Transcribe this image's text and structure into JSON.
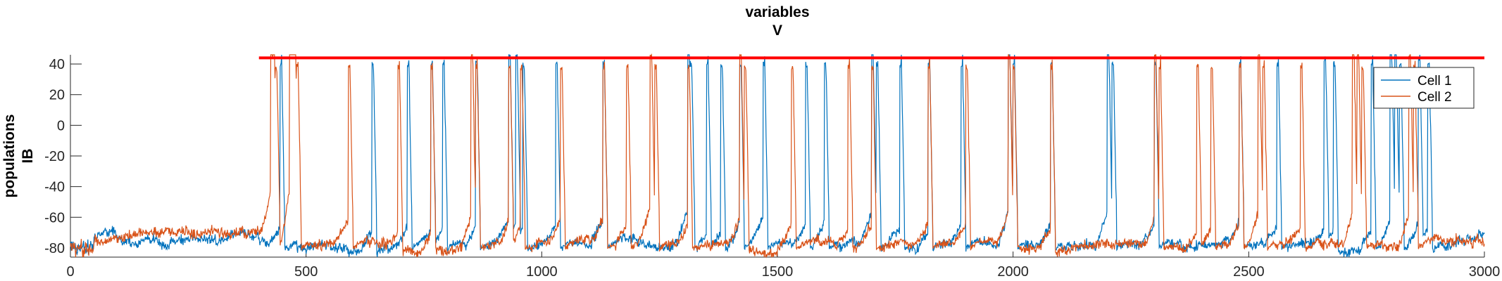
{
  "chart_data": {
    "type": "line",
    "title_lines": [
      "variables",
      "V"
    ],
    "ylabel_lines": [
      "populations",
      "IB"
    ],
    "xlabel": "",
    "xlim": [
      0,
      3000
    ],
    "ylim": [
      -86,
      46
    ],
    "xticks": [
      0,
      500,
      1000,
      1500,
      2000,
      2500,
      3000
    ],
    "yticks": [
      -80,
      -60,
      -40,
      -20,
      0,
      20,
      40
    ],
    "grid": false,
    "legend_position": "top-right",
    "threshold_line": {
      "y": 44,
      "x_start": 400,
      "x_end": 3000,
      "color": "#ff0000"
    },
    "baseline": -75,
    "series": [
      {
        "name": "Cell 1",
        "color": "#0072BD",
        "spike_times": [
          445,
          640,
          715,
          765,
          790,
          860,
          930,
          945,
          960,
          1030,
          1130,
          1310,
          1315,
          1350,
          1380,
          1420,
          1470,
          1560,
          1600,
          1700,
          1710,
          1760,
          1820,
          1890,
          1990,
          2000,
          2080,
          2200,
          2210,
          2300,
          2480,
          2560,
          2660,
          2680,
          2760,
          2800,
          2810,
          2820,
          2860,
          2880
        ],
        "spike_peak": 42
      },
      {
        "name": "Cell 2",
        "color": "#D95319",
        "spike_times": [
          425,
          430,
          435,
          465,
          470,
          475,
          480,
          590,
          695,
          765,
          850,
          860,
          930,
          955,
          1040,
          1130,
          1180,
          1230,
          1240,
          1310,
          1420,
          1430,
          1530,
          1650,
          1700,
          1820,
          1900,
          1990,
          2000,
          2080,
          2300,
          2310,
          2390,
          2420,
          2480,
          2520,
          2530,
          2610,
          2720,
          2730,
          2740,
          2840,
          2850
        ],
        "spike_peak": 40
      }
    ]
  }
}
